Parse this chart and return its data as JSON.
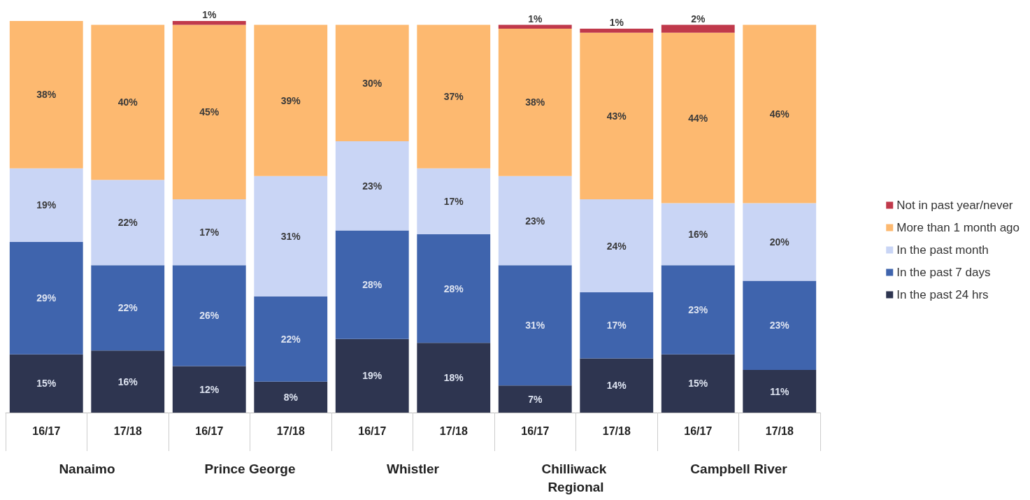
{
  "chart_data": {
    "type": "bar",
    "stacked": true,
    "legend": "right",
    "categories": [
      "16/17",
      "17/18",
      "16/17",
      "17/18",
      "16/17",
      "17/18",
      "16/17",
      "17/18",
      "16/17",
      "17/18"
    ],
    "annotations": [
      "Nanaimo",
      "Prince George",
      "Whistler",
      "Chilliwack Regional",
      "Campbell River"
    ],
    "series": [
      {
        "name": "In the past 24 hrs",
        "color": "#2e3550",
        "values": [
          15,
          16,
          12,
          8,
          19,
          18,
          7,
          14,
          15,
          11
        ],
        "value_labels": [
          "15%",
          "16%",
          "12%",
          "8%",
          "19%",
          "18%",
          "7%",
          "14%",
          "15%",
          "11%"
        ]
      },
      {
        "name": "In the past 7 days",
        "color": "#3f64ad",
        "values": [
          29,
          22,
          26,
          22,
          28,
          28,
          31,
          17,
          23,
          23
        ],
        "value_labels": [
          "29%",
          "22%",
          "26%",
          "22%",
          "28%",
          "28%",
          "31%",
          "17%",
          "23%",
          "23%"
        ]
      },
      {
        "name": "In the past month",
        "color": "#c9d5f5",
        "values": [
          19,
          22,
          17,
          31,
          23,
          17,
          23,
          24,
          16,
          20
        ],
        "value_labels": [
          "19%",
          "22%",
          "17%",
          "31%",
          "23%",
          "17%",
          "23%",
          "24%",
          "16%",
          "20%"
        ]
      },
      {
        "name": "More than 1 month ago",
        "color": "#fdb970",
        "values": [
          38,
          40,
          45,
          39,
          30,
          37,
          38,
          43,
          44,
          46
        ],
        "value_labels": [
          "38%",
          "40%",
          "45%",
          "39%",
          "30%",
          "37%",
          "38%",
          "43%",
          "44%",
          "46%"
        ]
      },
      {
        "name": "Not in past year/never",
        "color": "#c0394b",
        "values": [
          0,
          0,
          1,
          0,
          0,
          0,
          1,
          1,
          2,
          0
        ],
        "value_labels": [
          null,
          null,
          "1%",
          null,
          null,
          null,
          "1%",
          "1%",
          "2%",
          null
        ]
      }
    ]
  }
}
